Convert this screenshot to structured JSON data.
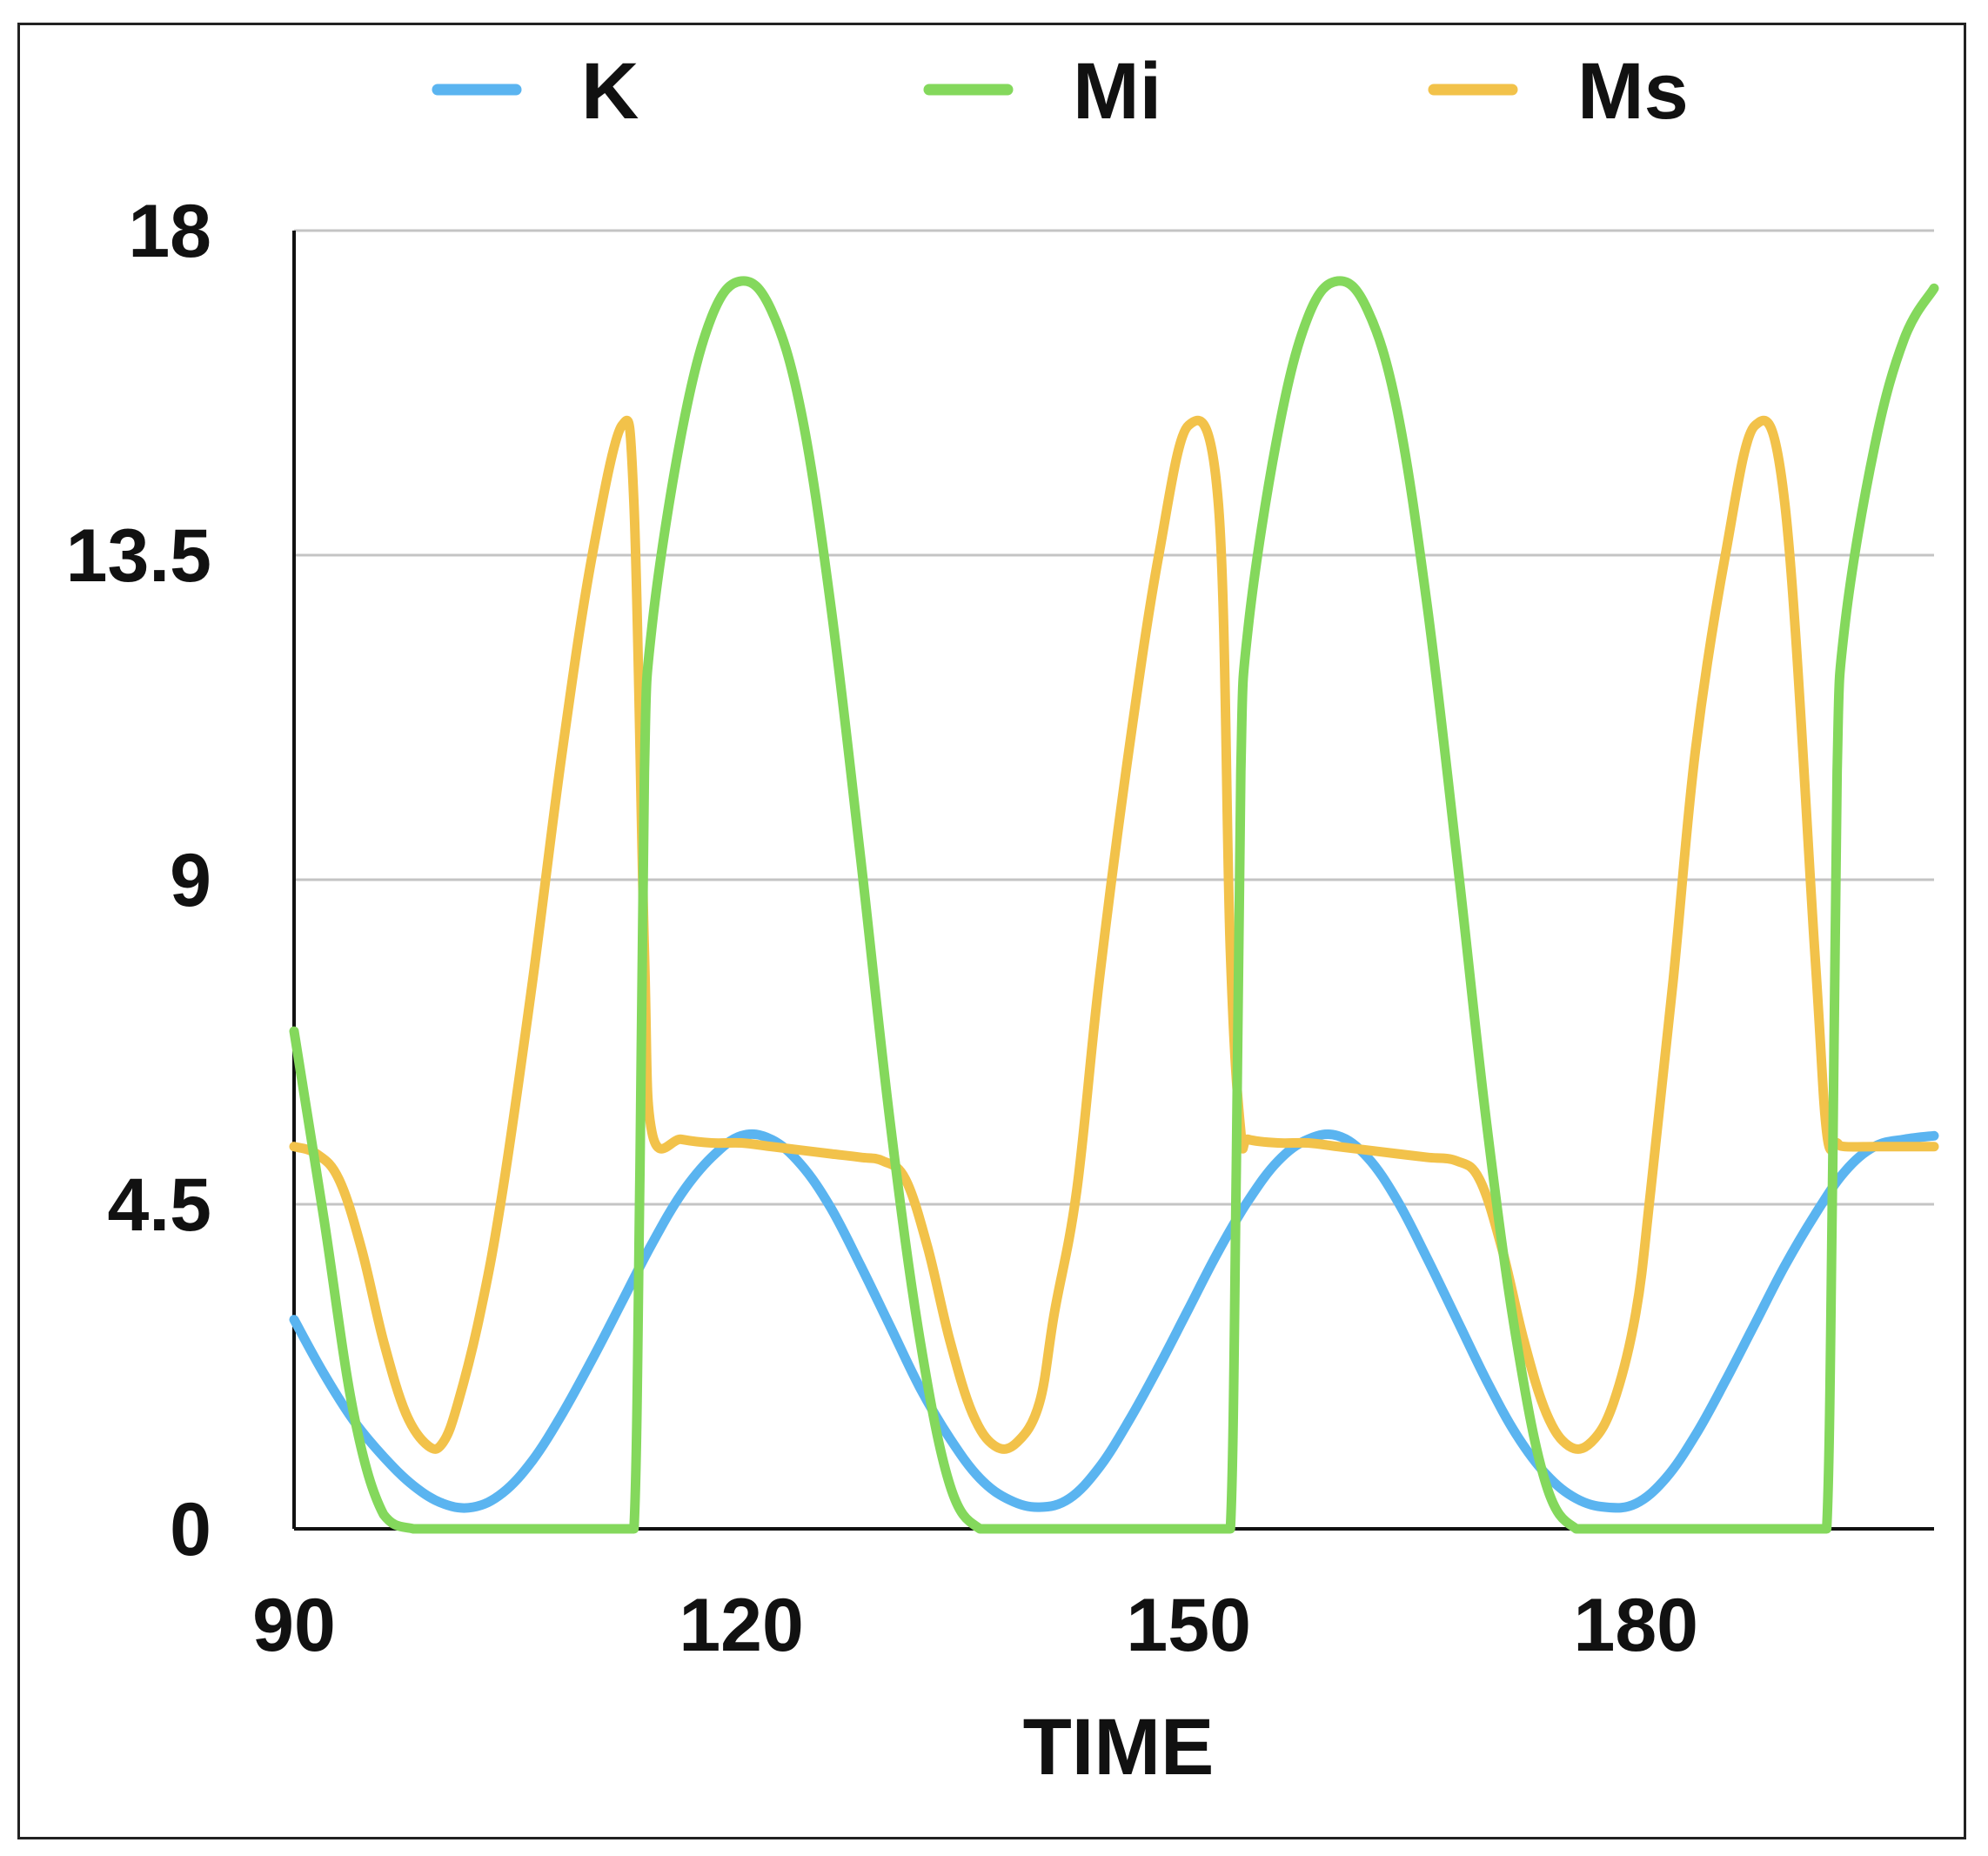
{
  "chart_data": {
    "type": "line",
    "title": "",
    "xlabel": "TIME",
    "ylabel": "",
    "xlim": [
      90,
      200
    ],
    "ylim": [
      0,
      18
    ],
    "xticks": [
      90,
      120,
      150,
      180
    ],
    "xtick_labels": [
      "90",
      "120",
      "150",
      "180"
    ],
    "yticks": [
      0,
      4.5,
      9,
      13.5,
      18
    ],
    "ytick_labels": [
      "0",
      "4.5",
      "9",
      "13.5",
      "18"
    ],
    "grid": "horizontal",
    "legend_position": "top",
    "series": [
      {
        "name": "K",
        "color": "#5ab4f0",
        "x": [
          90,
          92,
          94,
          96,
          98,
          100,
          102,
          104,
          106,
          108,
          110,
          112,
          114,
          116,
          118,
          120,
          122,
          124,
          126,
          128,
          130,
          132,
          134,
          136,
          138,
          140,
          142,
          144,
          146,
          148,
          150,
          152,
          154,
          156,
          158,
          160,
          162,
          164,
          166,
          168,
          170,
          172,
          174,
          176,
          178,
          180,
          182,
          184,
          186,
          188,
          190,
          192,
          194,
          196,
          198,
          200
        ],
        "y": [
          2.9,
          2.15,
          1.5,
          1.0,
          0.6,
          0.35,
          0.3,
          0.5,
          0.95,
          1.6,
          2.35,
          3.15,
          3.95,
          4.65,
          5.15,
          5.45,
          5.4,
          5.05,
          4.45,
          3.65,
          2.8,
          1.95,
          1.25,
          0.7,
          0.4,
          0.3,
          0.42,
          0.85,
          1.5,
          2.25,
          3.05,
          3.85,
          4.55,
          5.1,
          5.4,
          5.45,
          5.15,
          4.55,
          3.75,
          2.9,
          2.05,
          1.3,
          0.75,
          0.42,
          0.3,
          0.35,
          0.7,
          1.3,
          2.05,
          2.85,
          3.65,
          4.35,
          4.95,
          5.3,
          5.4,
          5.45
        ]
      },
      {
        "name": "Mi",
        "color": "#84d85c",
        "x": [
          90,
          92,
          94,
          96,
          98,
          100,
          102,
          104,
          106,
          108,
          110,
          112,
          112.8,
          113.2,
          113.5,
          114,
          116,
          118,
          120,
          122,
          124,
          126,
          128,
          130,
          132,
          134,
          136,
          138,
          140,
          142,
          144,
          146,
          148,
          150,
          152,
          152.8,
          153.2,
          153.5,
          154,
          156,
          158,
          160,
          162,
          164,
          166,
          168,
          170,
          172,
          174,
          176,
          178,
          180,
          182,
          184,
          186,
          188,
          190,
          192,
          192.8,
          193.2,
          193.5,
          194,
          196,
          198,
          200
        ],
        "y": [
          6.9,
          4.3,
          1.6,
          0.2,
          0,
          0,
          0,
          0,
          0,
          0,
          0,
          0,
          0,
          5.0,
          10.5,
          12.5,
          15.2,
          16.8,
          17.3,
          16.9,
          15.5,
          12.8,
          9.3,
          5.6,
          2.6,
          0.6,
          0,
          0,
          0,
          0,
          0,
          0,
          0,
          0,
          0,
          0,
          5.0,
          10.5,
          12.5,
          15.2,
          16.8,
          17.3,
          16.9,
          15.5,
          12.8,
          9.3,
          5.6,
          2.6,
          0.6,
          0,
          0,
          0,
          0,
          0,
          0,
          0,
          0,
          0,
          0,
          5.0,
          10.5,
          12.5,
          15.0,
          16.5,
          17.2
        ]
      },
      {
        "name": "Ms",
        "color": "#f2c24a",
        "x": [
          90,
          91.5,
          93,
          94.5,
          96,
          97.5,
          99,
          100,
          101,
          102.5,
          104,
          106,
          108,
          110,
          112,
          112.8,
          113.5,
          114,
          116,
          118,
          120,
          122,
          124,
          126,
          128,
          129.5,
          131,
          132.5,
          134,
          135.5,
          137,
          138.5,
          140,
          141,
          142.5,
          144,
          146,
          148,
          150,
          152,
          152.8,
          153.5,
          154,
          156,
          158,
          160,
          162,
          164,
          166,
          168,
          169.5,
          171,
          172.5,
          174,
          175.5,
          177,
          178.5,
          180,
          181,
          182.5,
          184,
          186,
          188,
          190,
          192,
          192.8,
          193.5,
          194,
          196,
          198,
          200
        ],
        "y": [
          5.3,
          5.2,
          4.85,
          3.9,
          2.6,
          1.6,
          1.15,
          1.2,
          1.75,
          3.0,
          4.7,
          7.6,
          10.8,
          13.5,
          15.3,
          14.2,
          8.0,
          5.5,
          5.4,
          5.35,
          5.35,
          5.3,
          5.25,
          5.2,
          5.15,
          5.1,
          4.85,
          3.9,
          2.6,
          1.6,
          1.15,
          1.2,
          1.75,
          3.0,
          4.7,
          7.6,
          10.8,
          13.5,
          15.3,
          14.2,
          8.0,
          5.5,
          5.4,
          5.35,
          5.35,
          5.3,
          5.25,
          5.2,
          5.15,
          5.1,
          4.85,
          3.9,
          2.6,
          1.6,
          1.15,
          1.2,
          1.75,
          3.0,
          4.7,
          7.6,
          10.8,
          13.5,
          15.3,
          14.2,
          8.0,
          5.5,
          5.35,
          5.3,
          5.3,
          5.3,
          5.3
        ]
      }
    ]
  }
}
